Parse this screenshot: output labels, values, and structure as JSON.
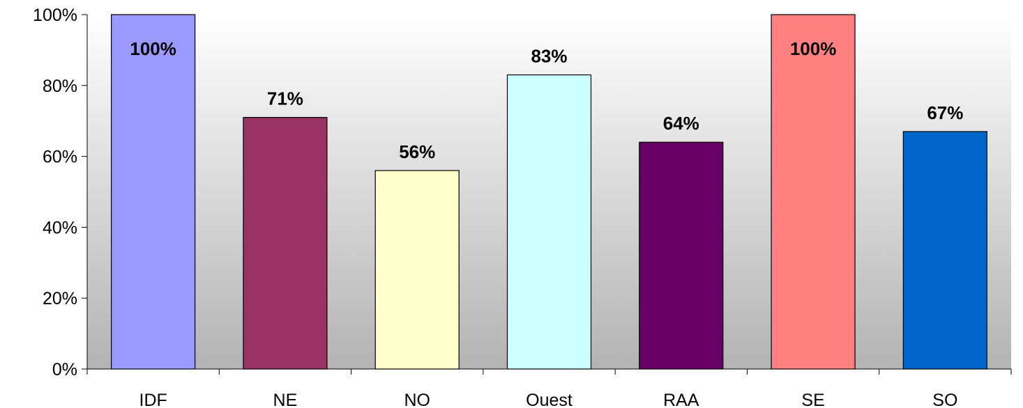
{
  "chart_data": {
    "type": "bar",
    "title": "",
    "xlabel": "",
    "ylabel": "",
    "categories": [
      "IDF",
      "NE",
      "NO",
      "Ouest",
      "RAA",
      "SE",
      "SO"
    ],
    "values": [
      100,
      71,
      56,
      83,
      64,
      100,
      67
    ],
    "data_labels": [
      "100%",
      "71%",
      "56%",
      "83%",
      "64%",
      "100%",
      "67%"
    ],
    "colors": [
      "#9999ff",
      "#993366",
      "#ffffcc",
      "#ccffff",
      "#660066",
      "#ff8080",
      "#0066cc"
    ],
    "ylim": [
      0,
      100
    ],
    "yticks": [
      0,
      20,
      40,
      60,
      80,
      100
    ],
    "ytick_labels": [
      "0%",
      "20%",
      "40%",
      "60%",
      "80%",
      "100%"
    ],
    "grid": false,
    "legend": "none",
    "background": "gradient-white-to-gray"
  }
}
